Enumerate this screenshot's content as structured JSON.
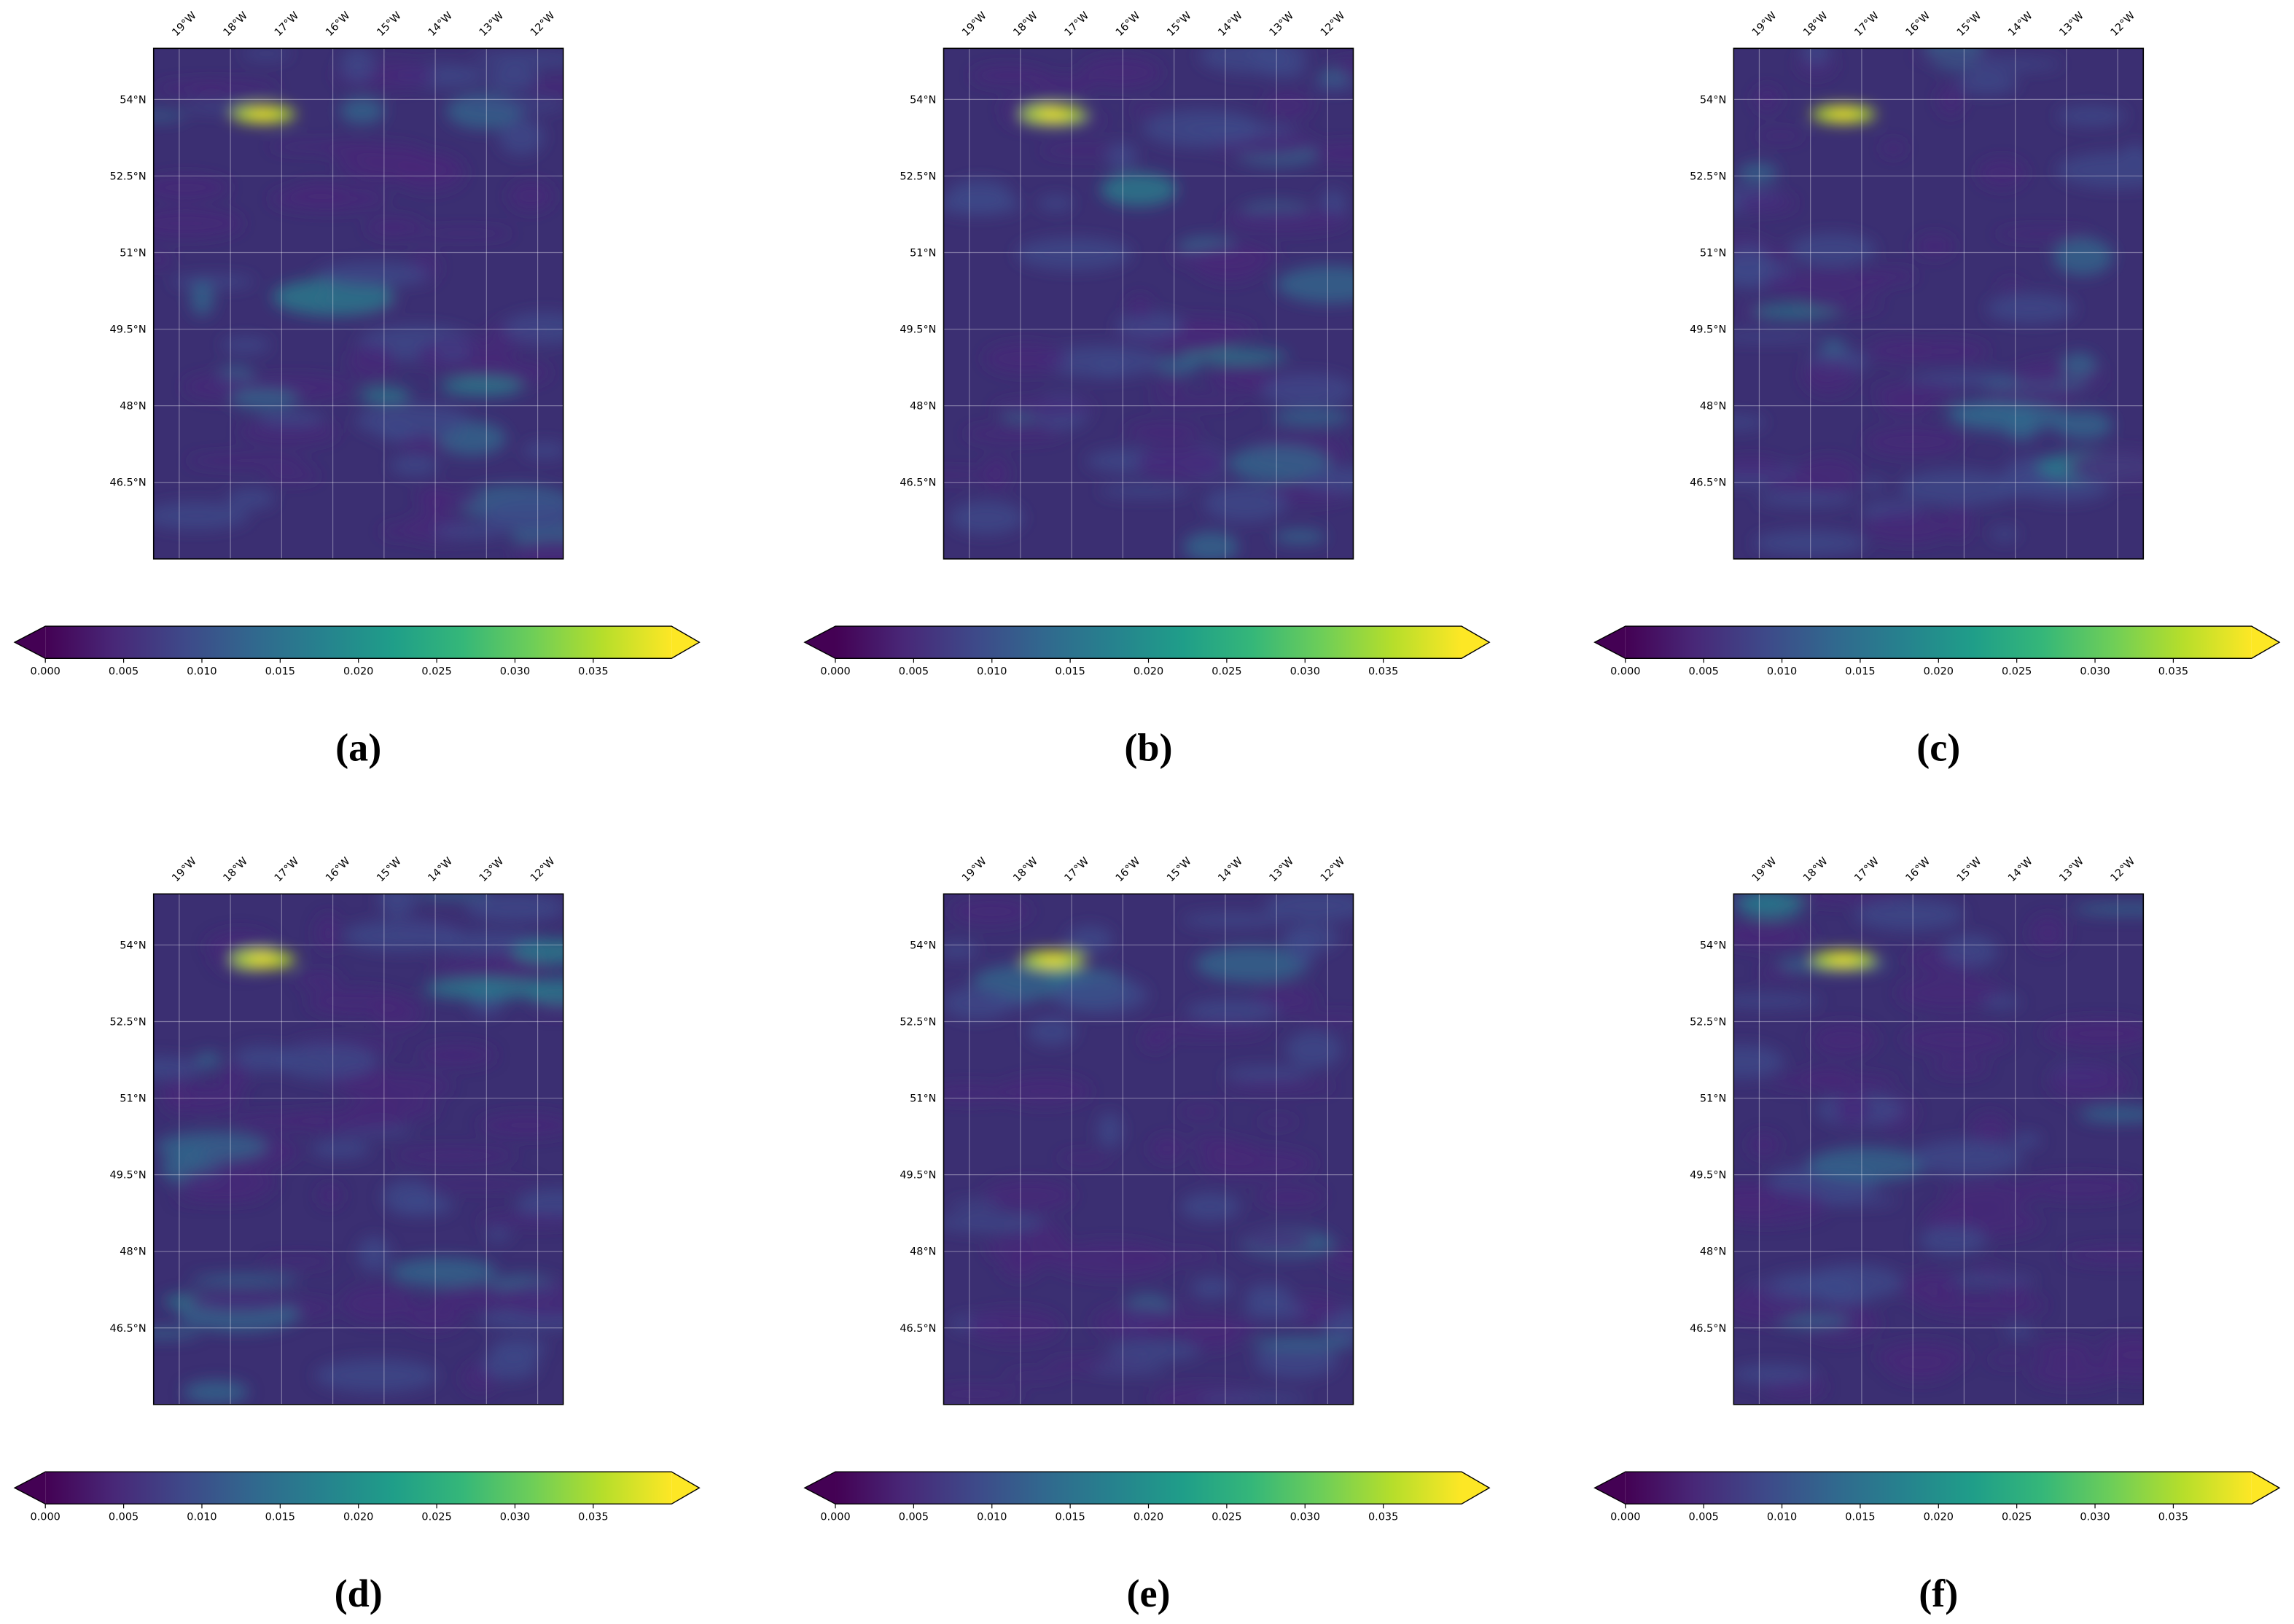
{
  "chart_data": {
    "type": "map",
    "xlim": [
      -19.5,
      -11.5
    ],
    "ylim": [
      45,
      55
    ],
    "xticks": [
      {
        "value": -19,
        "label": "19°W"
      },
      {
        "value": -18,
        "label": "18°W"
      },
      {
        "value": -17,
        "label": "17°W"
      },
      {
        "value": -16,
        "label": "16°W"
      },
      {
        "value": -15,
        "label": "15°W"
      },
      {
        "value": -14,
        "label": "14°W"
      },
      {
        "value": -13,
        "label": "13°W"
      },
      {
        "value": -12,
        "label": "12°W"
      }
    ],
    "yticks": [
      {
        "value": 54,
        "label": "54°N"
      },
      {
        "value": 52.5,
        "label": "52.5°N"
      },
      {
        "value": 51,
        "label": "51°N"
      },
      {
        "value": 49.5,
        "label": "49.5°N"
      },
      {
        "value": 48,
        "label": "48°N"
      },
      {
        "value": 46.5,
        "label": "46.5°N"
      }
    ],
    "grid": true,
    "colormap": "viridis",
    "colorbar": {
      "clim": [
        0,
        0.04
      ],
      "extend": "both",
      "ticks": [
        {
          "value": 0,
          "label": "0.000"
        },
        {
          "value": 0.005,
          "label": "0.005"
        },
        {
          "value": 0.01,
          "label": "0.010"
        },
        {
          "value": 0.015,
          "label": "0.015"
        },
        {
          "value": 0.02,
          "label": "0.020"
        },
        {
          "value": 0.025,
          "label": "0.025"
        },
        {
          "value": 0.03,
          "label": "0.030"
        },
        {
          "value": 0.035,
          "label": "0.035"
        }
      ]
    },
    "panels": [
      {
        "label": "(a)"
      },
      {
        "label": "(b)"
      },
      {
        "label": "(c)"
      },
      {
        "label": "(d)"
      },
      {
        "label": "(e)"
      },
      {
        "label": "(f)"
      }
    ]
  }
}
